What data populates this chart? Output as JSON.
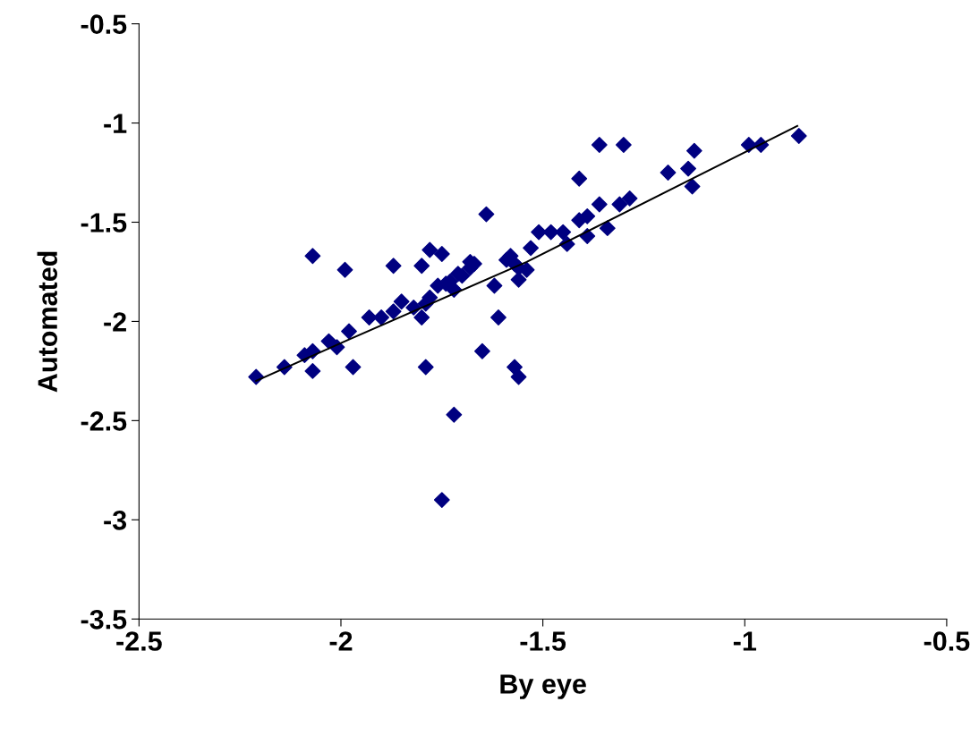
{
  "chart_data": {
    "type": "scatter",
    "xlabel": "By eye",
    "ylabel": "Automated",
    "xlim": [
      -2.5,
      -0.5
    ],
    "ylim": [
      -3.5,
      -0.5
    ],
    "xticks": [
      -2.5,
      -2,
      -1.5,
      -1,
      -0.5
    ],
    "yticks": [
      -3.5,
      -3,
      -2.5,
      -2,
      -1.5,
      -1,
      -0.5
    ],
    "grid": false,
    "legend": false,
    "series": [
      {
        "marker": "diamond",
        "color": "#000080",
        "x": [
          -2.21,
          -2.14,
          -2.09,
          -2.07,
          -2.03,
          -2.01,
          -1.98,
          -2.07,
          -1.97,
          -2.07,
          -1.99,
          -1.87,
          -1.93,
          -1.9,
          -1.87,
          -1.85,
          -1.82,
          -1.8,
          -1.79,
          -1.8,
          -1.78,
          -1.75,
          -1.78,
          -1.79,
          -1.76,
          -1.73,
          -1.72,
          -1.7,
          -1.68,
          -1.67,
          -1.72,
          -1.75,
          -1.64,
          -1.62,
          -1.61,
          -1.65,
          -1.57,
          -1.56,
          -1.36,
          -1.3,
          -1.125,
          -0.99,
          -0.96,
          -0.866,
          -1.14,
          -1.19,
          -1.13,
          -1.41,
          -1.285,
          -1.31,
          -1.36,
          -1.34,
          -1.39,
          -1.41,
          -1.39,
          -1.44,
          -1.45,
          -1.48,
          -1.51,
          -1.53,
          -1.58,
          -1.56,
          -1.54,
          -1.56,
          -1.68,
          -1.71,
          -1.74,
          -1.59,
          -1.57
        ],
        "values": [
          -2.28,
          -2.23,
          -2.17,
          -2.15,
          -2.1,
          -2.13,
          -2.05,
          -2.25,
          -2.23,
          -1.67,
          -1.74,
          -1.72,
          -1.98,
          -1.98,
          -1.95,
          -1.9,
          -1.93,
          -1.98,
          -1.91,
          -1.72,
          -1.64,
          -1.66,
          -1.88,
          -2.23,
          -1.82,
          -1.8,
          -1.84,
          -1.77,
          -1.73,
          -1.71,
          -2.47,
          -2.9,
          -1.46,
          -1.82,
          -1.98,
          -2.15,
          -2.23,
          -2.28,
          -1.11,
          -1.11,
          -1.14,
          -1.11,
          -1.11,
          -1.065,
          -1.23,
          -1.25,
          -1.32,
          -1.28,
          -1.38,
          -1.41,
          -1.41,
          -1.53,
          -1.47,
          -1.49,
          -1.57,
          -1.61,
          -1.55,
          -1.55,
          -1.55,
          -1.63,
          -1.67,
          -1.73,
          -1.74,
          -1.79,
          -1.7,
          -1.76,
          -1.81,
          -1.69,
          -1.71
        ]
      },
      {
        "type": "line",
        "marker": "none",
        "line_style": "solid",
        "color": "#000000",
        "x": [
          -2.21,
          -1.99,
          -1.54,
          -0.87
        ],
        "values": [
          -2.3,
          -2.1,
          -1.7,
          -1.015
        ]
      }
    ]
  }
}
